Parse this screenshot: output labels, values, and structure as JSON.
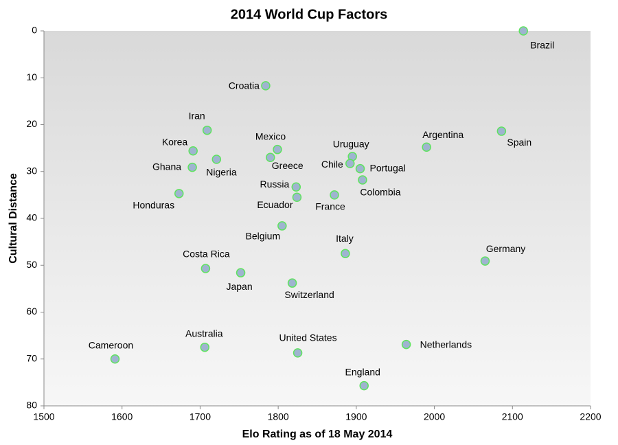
{
  "chart_data": {
    "type": "scatter",
    "title": "2014 World Cup Factors",
    "xlabel": "Elo Rating as of 18 May 2014",
    "ylabel": "Cultural Distance",
    "point_labels": [
      "Brazil",
      "Croatia",
      "Iran",
      "Korea",
      "Nigeria",
      "Ghana",
      "Honduras",
      "Mexico",
      "Greece",
      "Russia",
      "Ecuador",
      "Belgium",
      "Uruguay",
      "Chile",
      "Portugal",
      "Colombia",
      "France",
      "Argentina",
      "Spain",
      "Italy",
      "Germany",
      "Costa Rica",
      "Japan",
      "Switzerland",
      "Cameroon",
      "Australia",
      "United States",
      "Netherlands",
      "England"
    ],
    "x": [
      2114,
      1784,
      1709,
      1691,
      1721,
      1690,
      1673,
      1799,
      1790,
      1823,
      1824,
      1805,
      1895,
      1892,
      1905,
      1908,
      1872,
      1990,
      2086,
      1886,
      2065,
      1707,
      1752,
      1818,
      1591,
      1706,
      1825,
      1964,
      1910
    ],
    "values": [
      0,
      11.7,
      21.2,
      25.6,
      27.4,
      29.1,
      34.7,
      25.3,
      27.0,
      33.3,
      35.5,
      41.6,
      26.8,
      28.3,
      29.4,
      31.8,
      35.0,
      24.8,
      21.4,
      47.5,
      49.1,
      50.7,
      51.6,
      53.8,
      70.0,
      67.5,
      68.7,
      66.9,
      75.7
    ],
    "color": "#9fb4d0",
    "edge_color": "#5fe35f",
    "xlim": [
      1500,
      2200
    ],
    "xticks": [
      1500,
      1600,
      1700,
      1800,
      1900,
      2000,
      2100,
      2200
    ],
    "ylim": [
      0,
      80
    ],
    "yticks": [
      0,
      10,
      20,
      30,
      40,
      50,
      60,
      70,
      80
    ],
    "y_reversed": true,
    "grid": false
  }
}
